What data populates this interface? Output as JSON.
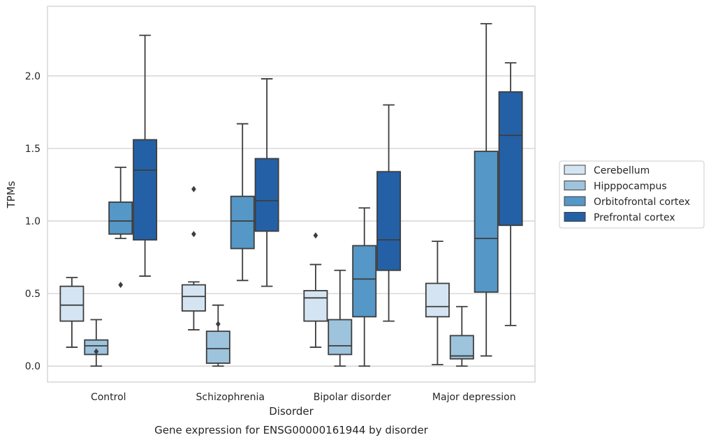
{
  "chart_data": {
    "type": "box",
    "title": "",
    "caption": "Gene expression for ENSG00000161944 by disorder",
    "xlabel": "Disorder",
    "ylabel": "TPMs",
    "ylim": [
      -0.11,
      2.48
    ],
    "yticks": [
      "0.0",
      "0.5",
      "1.0",
      "1.5",
      "2.0"
    ],
    "grid": "horizontal",
    "legend_position": "right",
    "categories": [
      "Control",
      "Schizophrenia",
      "Bipolar disorder",
      "Major depression"
    ],
    "series": [
      {
        "name": "Cerebellum",
        "color": "#d4e4f2",
        "boxes": [
          {
            "whisker_low": 0.13,
            "q1": 0.31,
            "median": 0.42,
            "q3": 0.55,
            "whisker_high": 0.61,
            "outliers": []
          },
          {
            "whisker_low": 0.25,
            "q1": 0.38,
            "median": 0.48,
            "q3": 0.56,
            "whisker_high": 0.58,
            "outliers": [
              1.22,
              0.91
            ]
          },
          {
            "whisker_low": 0.13,
            "q1": 0.31,
            "median": 0.47,
            "q3": 0.52,
            "whisker_high": 0.7,
            "outliers": [
              0.9
            ]
          },
          {
            "whisker_low": 0.01,
            "q1": 0.34,
            "median": 0.41,
            "q3": 0.57,
            "whisker_high": 0.86,
            "outliers": []
          }
        ]
      },
      {
        "name": "Hipppocampus",
        "color": "#9dc3dd",
        "boxes": [
          {
            "whisker_low": 0.0,
            "q1": 0.08,
            "median": 0.14,
            "q3": 0.18,
            "whisker_high": 0.32,
            "outliers": [
              0.1
            ]
          },
          {
            "whisker_low": 0.0,
            "q1": 0.02,
            "median": 0.12,
            "q3": 0.24,
            "whisker_high": 0.42,
            "outliers": [
              0.29
            ]
          },
          {
            "whisker_low": 0.0,
            "q1": 0.08,
            "median": 0.14,
            "q3": 0.32,
            "whisker_high": 0.66,
            "outliers": []
          },
          {
            "whisker_low": 0.0,
            "q1": 0.05,
            "median": 0.07,
            "q3": 0.21,
            "whisker_high": 0.41,
            "outliers": []
          }
        ]
      },
      {
        "name": "Orbitofrontal cortex",
        "color": "#5597c6",
        "boxes": [
          {
            "whisker_low": 0.88,
            "q1": 0.91,
            "median": 1.0,
            "q3": 1.13,
            "whisker_high": 1.37,
            "outliers": [
              0.56
            ]
          },
          {
            "whisker_low": 0.59,
            "q1": 0.81,
            "median": 1.0,
            "q3": 1.17,
            "whisker_high": 1.67,
            "outliers": []
          },
          {
            "whisker_low": 0.0,
            "q1": 0.34,
            "median": 0.6,
            "q3": 0.83,
            "whisker_high": 1.09,
            "outliers": []
          },
          {
            "whisker_low": 0.07,
            "q1": 0.51,
            "median": 0.88,
            "q3": 1.48,
            "whisker_high": 2.36,
            "outliers": []
          }
        ]
      },
      {
        "name": "Prefrontal cortex",
        "color": "#2460a6",
        "boxes": [
          {
            "whisker_low": 0.62,
            "q1": 0.87,
            "median": 1.35,
            "q3": 1.56,
            "whisker_high": 2.28,
            "outliers": []
          },
          {
            "whisker_low": 0.55,
            "q1": 0.93,
            "median": 1.14,
            "q3": 1.43,
            "whisker_high": 1.98,
            "outliers": []
          },
          {
            "whisker_low": 0.31,
            "q1": 0.66,
            "median": 0.87,
            "q3": 1.34,
            "whisker_high": 1.8,
            "outliers": []
          },
          {
            "whisker_low": 0.28,
            "q1": 0.97,
            "median": 1.59,
            "q3": 1.89,
            "whisker_high": 2.09,
            "outliers": []
          }
        ]
      }
    ],
    "colors": {
      "line": "#3d3d3d",
      "grid": "#cccccc",
      "frame": "#cccccc",
      "text": "#262626"
    }
  }
}
